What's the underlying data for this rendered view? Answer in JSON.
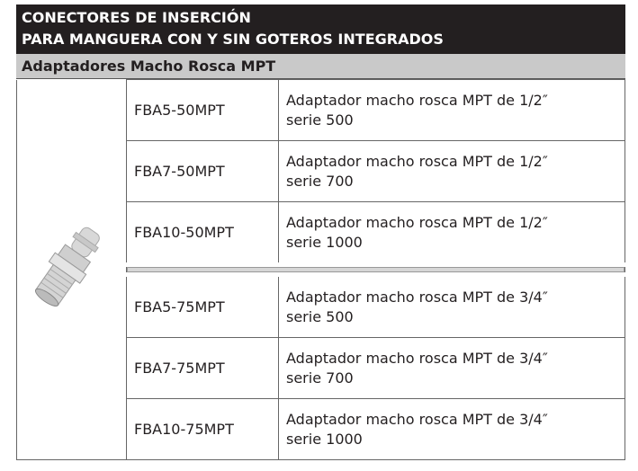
{
  "header": {
    "title_lines": [
      "CONECTORES DE INSERCIÓN",
      "PARA MANGUERA CON Y SIN GOTEROS INTEGRADOS"
    ],
    "subtitle": "Adaptadores Macho Rosca MPT"
  },
  "table": {
    "groups": [
      [
        {
          "code": "FBA5-50MPT",
          "description": [
            "Adaptador macho rosca MPT de 1/2″",
            "serie 500"
          ]
        },
        {
          "code": "FBA7-50MPT",
          "description": [
            "Adaptador macho rosca MPT de 1/2″",
            "serie 700"
          ]
        },
        {
          "code": "FBA10-50MPT",
          "description": [
            "Adaptador macho rosca MPT de 1/2″",
            "serie 1000"
          ]
        }
      ],
      [
        {
          "code": "FBA5-75MPT",
          "description": [
            "Adaptador macho rosca MPT de 3/4″",
            "serie 500"
          ]
        },
        {
          "code": "FBA7-75MPT",
          "description": [
            "Adaptador macho rosca MPT de 3/4″",
            "serie 700"
          ]
        },
        {
          "code": "FBA10-75MPT",
          "description": [
            "Adaptador macho rosca MPT de 3/4″",
            "serie 1000"
          ]
        }
      ]
    ]
  }
}
